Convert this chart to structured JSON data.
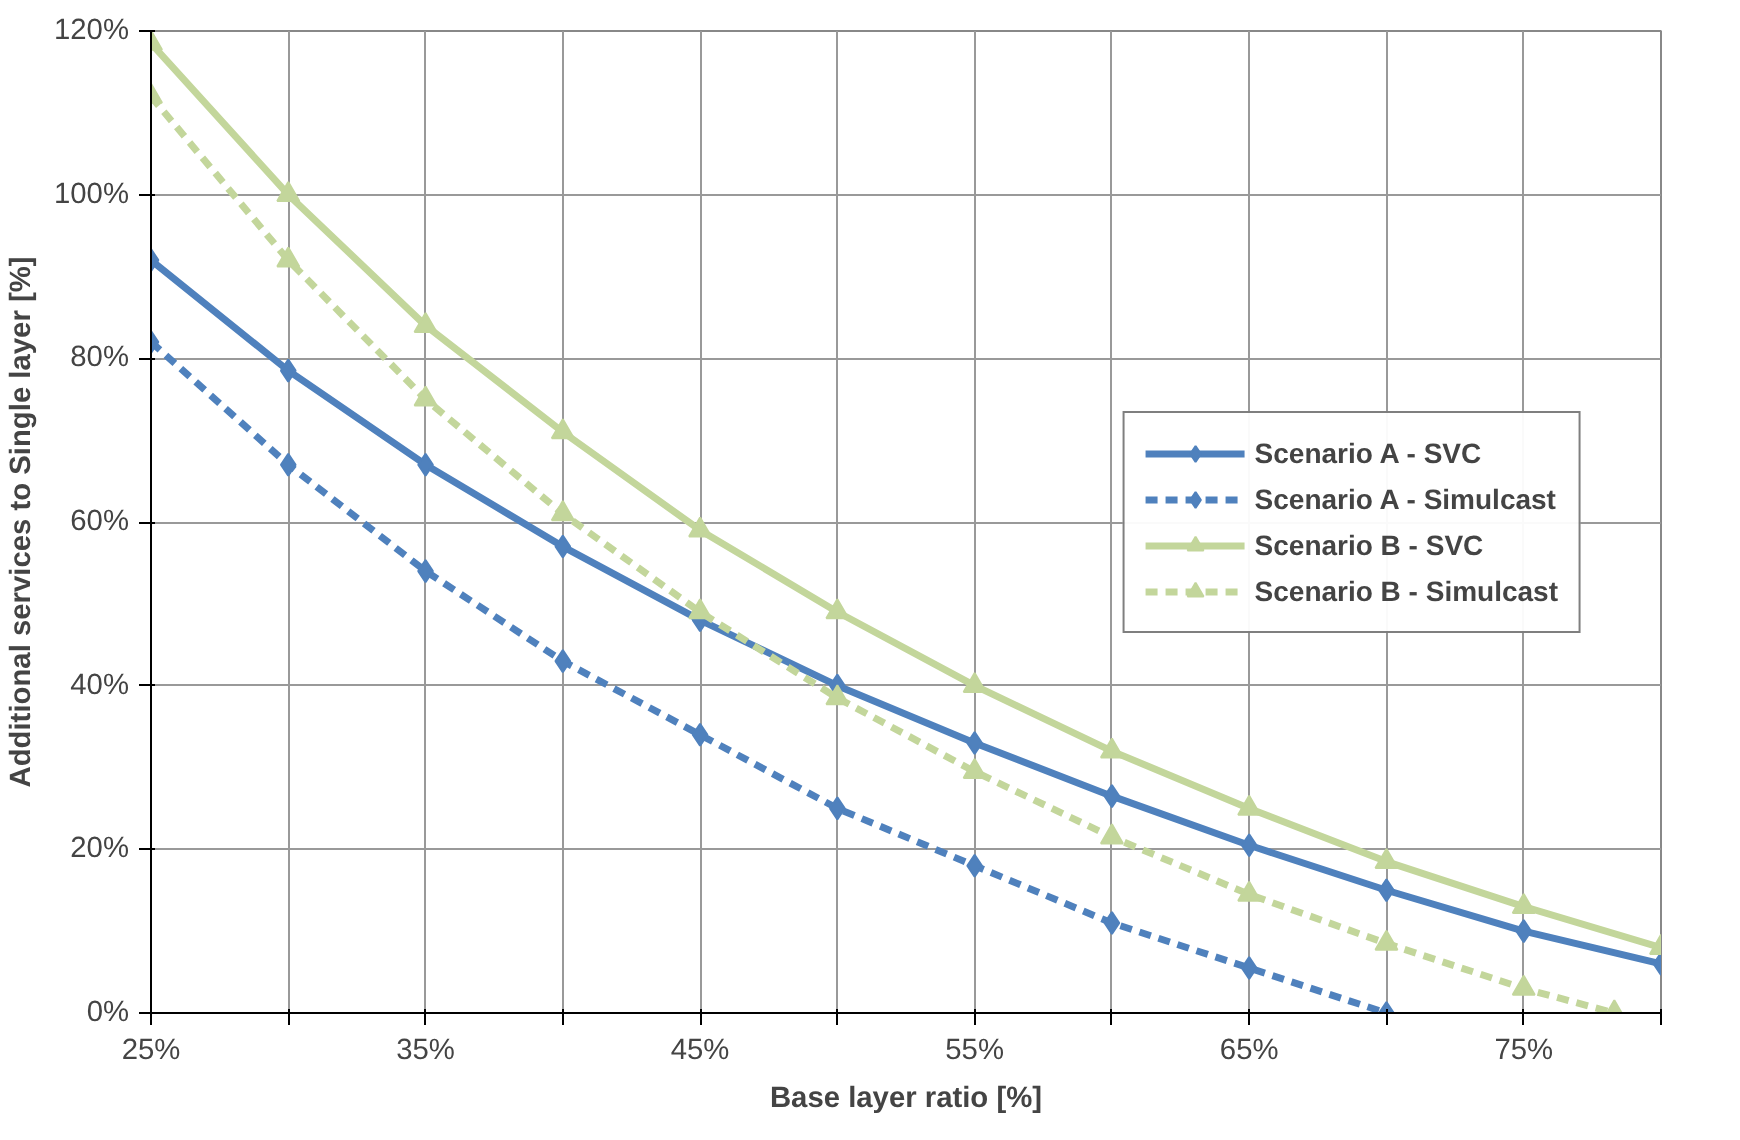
{
  "chart_data": {
    "type": "line",
    "xlabel": "Base layer ratio [%]",
    "ylabel": "Additional services to Single layer [%]",
    "x": [
      25,
      30,
      35,
      40,
      45,
      50,
      55,
      60,
      65,
      70,
      75,
      80
    ],
    "series": [
      {
        "name": "Scenario A - SVC",
        "color": "#4f81bd",
        "marker": "diamond",
        "line_style": "solid",
        "values": [
          92,
          78.5,
          67,
          57,
          48,
          40,
          33,
          26.5,
          20.5,
          15,
          10,
          6
        ]
      },
      {
        "name": "Scenario A - Simulcast",
        "color": "#4f81bd",
        "marker": "diamond",
        "line_style": "dashed",
        "x": [
          25,
          30,
          35,
          40,
          45,
          50,
          55,
          60,
          65,
          70
        ],
        "values": [
          82,
          67,
          54,
          43,
          34,
          25,
          18,
          11,
          5.5,
          0
        ]
      },
      {
        "name": "Scenario B - SVC",
        "color": "#c3d69b",
        "marker": "triangle",
        "line_style": "solid",
        "values": [
          118.5,
          100,
          84,
          71,
          59,
          49,
          40,
          32,
          25,
          18.5,
          13,
          8
        ]
      },
      {
        "name": "Scenario B - Simulcast",
        "color": "#c3d69b",
        "marker": "triangle",
        "line_style": "dashed",
        "x": [
          25,
          30,
          35,
          40,
          45,
          50,
          55,
          60,
          65,
          70,
          75,
          78.3
        ],
        "values": [
          112,
          92,
          75,
          61,
          49,
          38.5,
          29.5,
          21.5,
          14.5,
          8.5,
          3,
          0
        ]
      }
    ],
    "xlim": [
      25,
      80
    ],
    "xticks": [
      {
        "value": 25,
        "label": "25%"
      },
      {
        "value": 30,
        "label": null
      },
      {
        "value": 35,
        "label": "35%"
      },
      {
        "value": 40,
        "label": null
      },
      {
        "value": 45,
        "label": "45%"
      },
      {
        "value": 50,
        "label": null
      },
      {
        "value": 55,
        "label": "55%"
      },
      {
        "value": 60,
        "label": null
      },
      {
        "value": 65,
        "label": "65%"
      },
      {
        "value": 70,
        "label": null
      },
      {
        "value": 75,
        "label": "75%"
      },
      {
        "value": 80,
        "label": null
      }
    ],
    "ylim": [
      0,
      120
    ],
    "yticks": [
      {
        "value": 0,
        "label": "0%"
      },
      {
        "value": 20,
        "label": "20%"
      },
      {
        "value": 40,
        "label": "40%"
      },
      {
        "value": 60,
        "label": "60%"
      },
      {
        "value": 80,
        "label": "80%"
      },
      {
        "value": 100,
        "label": "100%"
      },
      {
        "value": 120,
        "label": "120%"
      }
    ],
    "grid": true,
    "legend": "right"
  }
}
